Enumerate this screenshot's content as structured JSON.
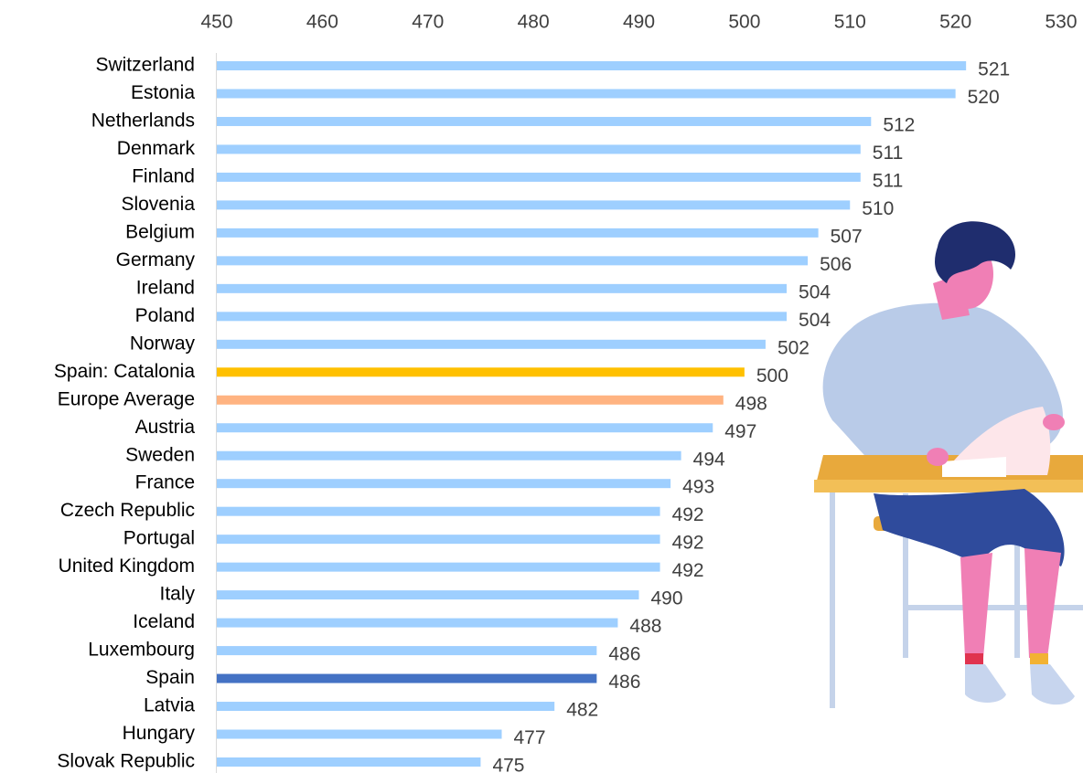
{
  "chart_data": {
    "type": "bar",
    "orientation": "horizontal",
    "categories": [
      "Switzerland",
      "Estonia",
      "Netherlands",
      "Denmark",
      "Finland",
      "Slovenia",
      "Belgium",
      "Germany",
      "Ireland",
      "Poland",
      "Norway",
      "Spain: Catalonia",
      "Europe Average",
      "Austria",
      "Sweden",
      "France",
      "Czech Republic",
      "Portugal",
      "United Kingdom",
      "Italy",
      "Iceland",
      "Luxembourg",
      "Spain",
      "Latvia",
      "Hungary",
      "Slovak Republic"
    ],
    "values": [
      521,
      520,
      512,
      511,
      511,
      510,
      507,
      506,
      504,
      504,
      502,
      500,
      498,
      497,
      494,
      493,
      492,
      492,
      492,
      490,
      488,
      486,
      486,
      482,
      477,
      475
    ],
    "colors": [
      "#9ecfff",
      "#9ecfff",
      "#9ecfff",
      "#9ecfff",
      "#9ecfff",
      "#9ecfff",
      "#9ecfff",
      "#9ecfff",
      "#9ecfff",
      "#9ecfff",
      "#9ecfff",
      "#ffc000",
      "#ffb381",
      "#9ecfff",
      "#9ecfff",
      "#9ecfff",
      "#9ecfff",
      "#9ecfff",
      "#9ecfff",
      "#9ecfff",
      "#9ecfff",
      "#9ecfff",
      "#4472c4",
      "#9ecfff",
      "#9ecfff",
      "#9ecfff"
    ],
    "xlim": [
      450,
      530
    ],
    "xticks": [
      450,
      460,
      470,
      480,
      490,
      500,
      510,
      520,
      530
    ],
    "grid": false
  }
}
